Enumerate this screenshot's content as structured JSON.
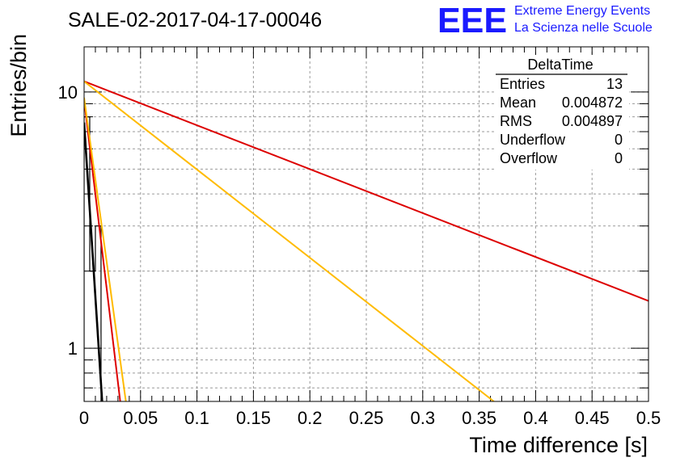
{
  "header": {
    "title": "SALE-02-2017-04-17-00046",
    "logo_text": "EEE",
    "logo_line1": "Extreme Energy Events",
    "logo_line2": "La Scienza nelle Scuole",
    "logo_color": "#1a1aff"
  },
  "stats_box": {
    "title": "DeltaTime",
    "rows": [
      {
        "label": "Entries",
        "value": "13"
      },
      {
        "label": "Mean",
        "value": "0.004872"
      },
      {
        "label": "RMS",
        "value": "0.004897"
      },
      {
        "label": "Underflow",
        "value": "0"
      },
      {
        "label": "Overflow",
        "value": "0"
      }
    ]
  },
  "chart_data": {
    "type": "line",
    "title": "SALE-02-2017-04-17-00046",
    "xlabel": "Time difference [s]",
    "ylabel": "Entries/bin",
    "xlim": [
      0,
      0.5
    ],
    "ylim": [
      0.62,
      15
    ],
    "y_scale": "log",
    "grid": true,
    "x_ticks": [
      "0",
      "0.05",
      "0.1",
      "0.15",
      "0.2",
      "0.25",
      "0.3",
      "0.35",
      "0.4",
      "0.45",
      "0.5"
    ],
    "y_ticks": [
      "1",
      "10"
    ],
    "histogram": {
      "color": "#000000",
      "bin_edges": [
        0,
        0.005,
        0.01,
        0.015,
        0.02
      ],
      "values": [
        8,
        2,
        3,
        0
      ]
    },
    "series": [
      {
        "color": "#dd0000",
        "x": [
          0,
          0.5
        ],
        "y": [
          11,
          1.53
        ]
      },
      {
        "color": "#ffbb00",
        "x": [
          0,
          0.363
        ],
        "y": [
          11,
          0.62
        ]
      },
      {
        "color": "#dd0000",
        "x": [
          0,
          0.032
        ],
        "y": [
          9.3,
          0.62
        ]
      },
      {
        "color": "#ffbb00",
        "x": [
          0,
          0.037
        ],
        "y": [
          9.5,
          0.62
        ]
      },
      {
        "color": "#000000",
        "x": [
          0,
          0.016
        ],
        "y": [
          7.6,
          0.62
        ]
      }
    ]
  }
}
